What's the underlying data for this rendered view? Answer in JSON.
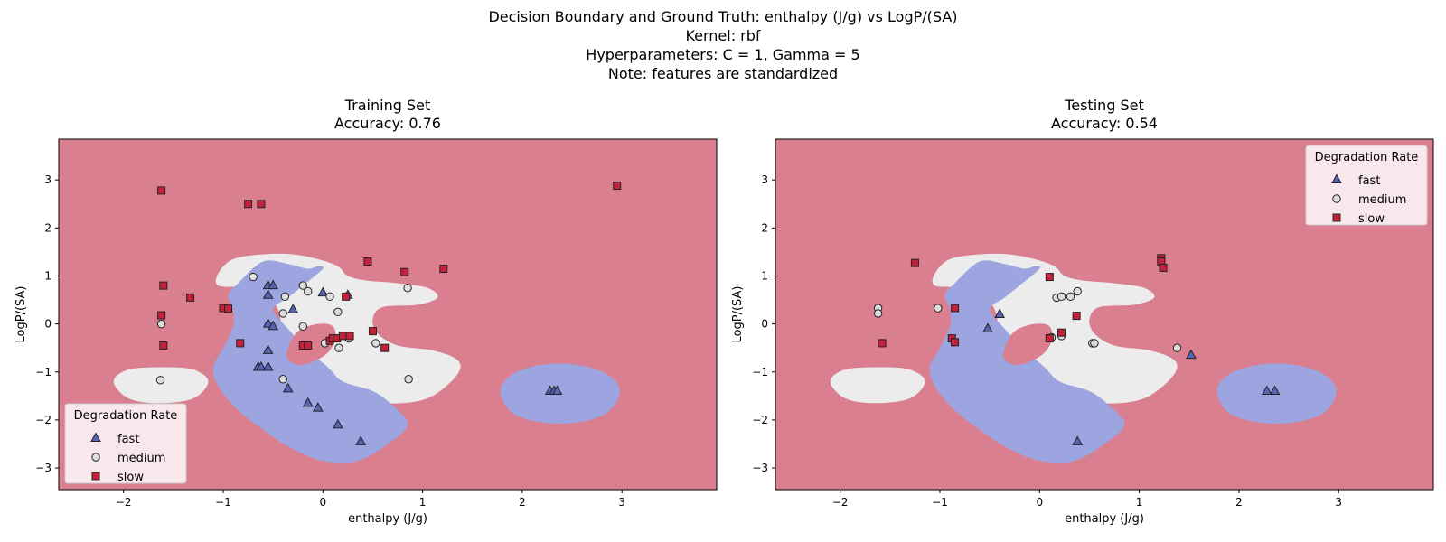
{
  "suptitle": {
    "line1": "Decision Boundary and Ground Truth: enthalpy (J/g) vs LogP/(SA)",
    "line2": "Kernel: rbf",
    "line3": "Hyperparameters: C = 1, Gamma = 5",
    "line4": "Note: features are standardized"
  },
  "colors": {
    "fast_region": "#9da5e0",
    "medium_region": "#ececec",
    "slow_region": "#d97f8f",
    "fast_marker": "#5763b5",
    "medium_marker": "#dddddd",
    "slow_marker": "#c4223b"
  },
  "chart_data": [
    {
      "type": "scatter",
      "title": "Training Set",
      "subtitle": "Accuracy: 0.76",
      "xlabel": "enthalpy (J/g)",
      "ylabel": "LogP/(SA)",
      "xlim": [
        -2.65,
        3.95
      ],
      "ylim": [
        -3.45,
        3.85
      ],
      "xticks": [
        -2,
        -1,
        0,
        1,
        2,
        3
      ],
      "yticks": [
        -3,
        -2,
        -1,
        0,
        1,
        2,
        3
      ],
      "xtick_labels": [
        "−2",
        "−1",
        "0",
        "1",
        "2",
        "3"
      ],
      "ytick_labels": [
        "−3",
        "−2",
        "−1",
        "0",
        "1",
        "2",
        "3"
      ],
      "legend": {
        "title": "Degradation Rate",
        "position": "lower-left",
        "labels": [
          "fast",
          "medium",
          "slow"
        ]
      },
      "series": [
        {
          "name": "fast",
          "marker": "triangle",
          "points": [
            [
              -0.55,
              0.8
            ],
            [
              -0.5,
              0.8
            ],
            [
              -0.55,
              0.6
            ],
            [
              -0.55,
              0.0
            ],
            [
              -0.5,
              -0.05
            ],
            [
              -0.3,
              0.3
            ],
            [
              -0.55,
              -0.55
            ],
            [
              -0.65,
              -0.9
            ],
            [
              -0.62,
              -0.9
            ],
            [
              -0.55,
              -0.9
            ],
            [
              -0.35,
              -1.35
            ],
            [
              -0.15,
              -1.65
            ],
            [
              -0.05,
              -1.75
            ],
            [
              0.15,
              -2.1
            ],
            [
              0.38,
              -2.45
            ],
            [
              2.28,
              -1.4
            ],
            [
              2.32,
              -1.4
            ],
            [
              2.35,
              -1.4
            ],
            [
              0.0,
              0.65
            ],
            [
              0.25,
              0.6
            ]
          ]
        },
        {
          "name": "medium",
          "marker": "circle",
          "points": [
            [
              -1.62,
              0.0
            ],
            [
              -1.63,
              -1.17
            ],
            [
              -0.7,
              0.98
            ],
            [
              -0.38,
              0.57
            ],
            [
              -0.4,
              0.22
            ],
            [
              -0.2,
              0.8
            ],
            [
              -0.15,
              0.68
            ],
            [
              0.07,
              0.57
            ],
            [
              0.15,
              0.25
            ],
            [
              -0.2,
              -0.05
            ],
            [
              0.85,
              0.75
            ],
            [
              0.53,
              -0.4
            ],
            [
              0.02,
              -0.4
            ],
            [
              0.16,
              -0.5
            ],
            [
              0.26,
              -0.3
            ],
            [
              0.86,
              -1.15
            ],
            [
              -0.4,
              -1.15
            ]
          ]
        },
        {
          "name": "slow",
          "marker": "square",
          "points": [
            [
              -1.62,
              2.78
            ],
            [
              -0.75,
              2.5
            ],
            [
              -0.62,
              2.5
            ],
            [
              2.95,
              2.88
            ],
            [
              -1.6,
              0.8
            ],
            [
              -1.33,
              0.55
            ],
            [
              -1.0,
              0.33
            ],
            [
              -0.95,
              0.32
            ],
            [
              -1.62,
              0.18
            ],
            [
              -1.6,
              -0.45
            ],
            [
              -0.83,
              -0.4
            ],
            [
              -0.2,
              -0.45
            ],
            [
              -0.15,
              -0.45
            ],
            [
              0.07,
              -0.35
            ],
            [
              0.1,
              -0.3
            ],
            [
              0.14,
              -0.3
            ],
            [
              0.2,
              -0.25
            ],
            [
              0.27,
              -0.25
            ],
            [
              0.45,
              1.3
            ],
            [
              0.82,
              1.08
            ],
            [
              1.21,
              1.15
            ],
            [
              0.23,
              0.57
            ],
            [
              0.5,
              -0.15
            ],
            [
              0.62,
              -0.5
            ]
          ]
        }
      ]
    },
    {
      "type": "scatter",
      "title": "Testing Set",
      "subtitle": "Accuracy: 0.54",
      "xlabel": "enthalpy (J/g)",
      "ylabel": "LogP/(SA)",
      "xlim": [
        -2.65,
        3.95
      ],
      "ylim": [
        -3.45,
        3.85
      ],
      "xticks": [
        -2,
        -1,
        0,
        1,
        2,
        3
      ],
      "yticks": [
        -3,
        -2,
        -1,
        0,
        1,
        2,
        3
      ],
      "xtick_labels": [
        "−2",
        "−1",
        "0",
        "1",
        "2",
        "3"
      ],
      "ytick_labels": [
        "−3",
        "−2",
        "−1",
        "0",
        "1",
        "2",
        "3"
      ],
      "legend": {
        "title": "Degradation Rate",
        "position": "upper-right",
        "labels": [
          "fast",
          "medium",
          "slow"
        ]
      },
      "series": [
        {
          "name": "fast",
          "marker": "triangle",
          "points": [
            [
              -0.4,
              0.2
            ],
            [
              -0.52,
              -0.1
            ],
            [
              1.52,
              -0.65
            ],
            [
              2.28,
              -1.4
            ],
            [
              2.36,
              -1.4
            ],
            [
              0.38,
              -2.45
            ]
          ]
        },
        {
          "name": "medium",
          "marker": "circle",
          "points": [
            [
              -1.62,
              0.33
            ],
            [
              -1.62,
              0.22
            ],
            [
              -1.02,
              0.33
            ],
            [
              0.17,
              0.55
            ],
            [
              0.22,
              0.57
            ],
            [
              0.31,
              0.57
            ],
            [
              0.38,
              0.68
            ],
            [
              0.22,
              -0.25
            ],
            [
              0.12,
              -0.28
            ],
            [
              0.53,
              -0.4
            ],
            [
              0.55,
              -0.4
            ],
            [
              1.38,
              -0.5
            ]
          ]
        },
        {
          "name": "slow",
          "marker": "square",
          "points": [
            [
              -1.25,
              1.27
            ],
            [
              -0.85,
              0.33
            ],
            [
              -0.88,
              -0.3
            ],
            [
              -0.85,
              -0.38
            ],
            [
              0.1,
              0.98
            ],
            [
              1.22,
              1.37
            ],
            [
              1.22,
              1.3
            ],
            [
              1.24,
              1.17
            ],
            [
              0.37,
              0.17
            ],
            [
              0.22,
              -0.18
            ],
            [
              0.1,
              -0.3
            ],
            [
              -1.58,
              -0.4
            ]
          ]
        }
      ]
    }
  ]
}
